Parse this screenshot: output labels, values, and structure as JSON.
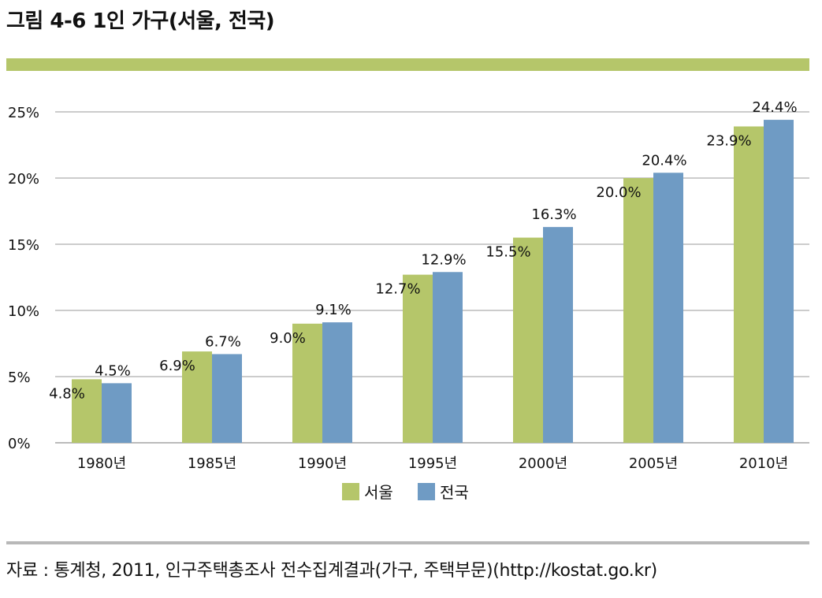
{
  "figure_title": "그림 4-6 1인 가구(서울, 전국)",
  "source_note": "자료 : 통계청, 2011, 인구주택총조사 전수집계결과(가구, 주택부문)(http://kostat.go.kr)",
  "colors": {
    "seoul": "#b5c66a",
    "nation": "#6f9bc4",
    "grid": "#9a9a9a",
    "accent_bar": "#b5c66a"
  },
  "chart_data": {
    "type": "bar",
    "title": "그림 4-6 1인 가구(서울, 전국)",
    "xlabel": "",
    "ylabel": "",
    "categories": [
      "1980년",
      "1985년",
      "1990년",
      "1995년",
      "2000년",
      "2005년",
      "2010년"
    ],
    "series": [
      {
        "name": "서울",
        "values": [
          4.8,
          6.9,
          9.0,
          12.7,
          15.5,
          20.0,
          23.9
        ],
        "labels": [
          "4.8%",
          "6.9%",
          "9.0%",
          "12.7%",
          "15.5%",
          "20.0%",
          "23.9%"
        ]
      },
      {
        "name": "전국",
        "values": [
          4.5,
          6.7,
          9.1,
          12.9,
          16.3,
          20.4,
          24.4
        ],
        "labels": [
          "4.5%",
          "6.7%",
          "9.1%",
          "12.9%",
          "16.3%",
          "20.4%",
          "24.4%"
        ]
      }
    ],
    "ylim": [
      0,
      25
    ],
    "yticks": [
      0,
      5,
      10,
      15,
      20,
      25
    ],
    "ytick_labels": [
      "0%",
      "5%",
      "10%",
      "15%",
      "20%",
      "25%"
    ],
    "grid": true,
    "legend_position": "bottom-center"
  }
}
